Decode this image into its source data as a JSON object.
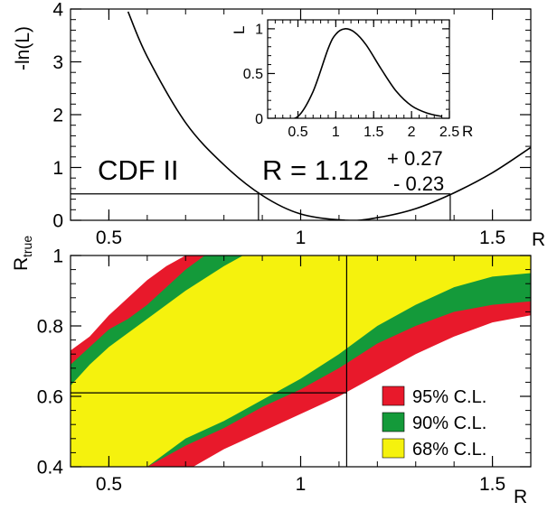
{
  "chart_data": [
    {
      "id": "neg_log_likelihood",
      "type": "line",
      "title": "",
      "xlabel": "R",
      "ylabel": "-ln(L)",
      "xlim": [
        0.4,
        1.6
      ],
      "ylim": [
        0,
        4
      ],
      "x_ticks": [
        "0.5",
        "1",
        "1.5"
      ],
      "y_ticks": [
        "0",
        "1",
        "2",
        "3",
        "4"
      ],
      "series": [
        {
          "x": [
            0.55,
            0.6,
            0.7,
            0.8,
            0.9,
            1.0,
            1.12,
            1.2,
            1.3,
            1.4,
            1.5,
            1.6
          ],
          "y": [
            3.95,
            3.1,
            1.85,
            1.05,
            0.47,
            0.12,
            0.0,
            0.05,
            0.22,
            0.52,
            0.9,
            1.38
          ]
        }
      ],
      "reference_line_y": 0.5,
      "interval_markers_x": [
        0.89,
        1.39
      ],
      "label_experiment": "CDF II",
      "result_text": "R = 1.12",
      "result_plus": "+ 0.27",
      "result_minus": "- 0.23"
    },
    {
      "id": "likelihood_inset",
      "type": "line",
      "title": "",
      "xlabel": "R",
      "ylabel": "L",
      "xlim": [
        0.1,
        2.5
      ],
      "ylim": [
        0,
        1.1
      ],
      "x_ticks": [
        "0.5",
        "1",
        "1.5",
        "2",
        "2.5"
      ],
      "y_ticks": [
        "0",
        "0.5",
        "1"
      ],
      "series": [
        {
          "x": [
            0.3,
            0.5,
            0.7,
            0.9,
            1.0,
            1.12,
            1.25,
            1.4,
            1.6,
            1.8,
            2.0,
            2.2,
            2.4
          ],
          "y": [
            0.0,
            0.02,
            0.3,
            0.78,
            0.94,
            1.0,
            0.96,
            0.82,
            0.55,
            0.3,
            0.14,
            0.06,
            0.02
          ]
        }
      ]
    },
    {
      "id": "confidence_belt",
      "type": "area",
      "title": "",
      "xlabel": "R",
      "ylabel": "R_true",
      "ylabel_main": "R",
      "ylabel_sub": "true",
      "xlim": [
        0.4,
        1.6
      ],
      "ylim": [
        0.4,
        1.0
      ],
      "x_ticks": [
        "0.5",
        "1",
        "1.5"
      ],
      "y_ticks": [
        "0.4",
        "0.6",
        "0.8",
        "1"
      ],
      "measured_R": 1.12,
      "interval_lower_Rtrue": 0.61,
      "bands": [
        {
          "name": "95% C.L.",
          "color": "#e8192b",
          "upper_x": [
            0.4,
            0.45,
            0.5,
            0.55,
            0.6,
            0.65,
            0.7
          ],
          "upper_y": [
            0.73,
            0.77,
            0.83,
            0.88,
            0.93,
            0.97,
            1.0
          ],
          "lower_x": [
            0.72,
            0.8,
            0.9,
            1.0,
            1.1,
            1.2,
            1.3,
            1.4,
            1.5,
            1.6
          ],
          "lower_y": [
            0.4,
            0.45,
            0.5,
            0.55,
            0.6,
            0.66,
            0.72,
            0.77,
            0.81,
            0.83
          ]
        },
        {
          "name": "90% C.L.",
          "color": "#149a3a",
          "upper_x": [
            0.4,
            0.45,
            0.5,
            0.55,
            0.6,
            0.7,
            0.75
          ],
          "upper_y": [
            0.69,
            0.74,
            0.79,
            0.82,
            0.86,
            0.96,
            1.0
          ],
          "lower_x": [
            0.6,
            0.7,
            0.8,
            0.9,
            1.0,
            1.1,
            1.2,
            1.3,
            1.4,
            1.5,
            1.6
          ],
          "lower_y": [
            0.4,
            0.46,
            0.51,
            0.57,
            0.62,
            0.68,
            0.75,
            0.8,
            0.84,
            0.86,
            0.87
          ]
        },
        {
          "name": "68% C.L.",
          "color": "#f5f20d",
          "upper_x": [
            0.4,
            0.45,
            0.5,
            0.6,
            0.7,
            0.8,
            0.85
          ],
          "upper_y": [
            0.63,
            0.69,
            0.74,
            0.82,
            0.9,
            0.97,
            1.0
          ],
          "lower_x": [
            0.4,
            0.5,
            0.6,
            0.7,
            0.8,
            0.9,
            1.0,
            1.1,
            1.2,
            1.3,
            1.4,
            1.5,
            1.6
          ],
          "lower_y": [
            0.4,
            0.4,
            0.4,
            0.48,
            0.53,
            0.59,
            0.65,
            0.72,
            0.8,
            0.86,
            0.91,
            0.94,
            0.95
          ]
        }
      ],
      "legend_position": "bottom-right",
      "legend": [
        {
          "label": "95% C.L.",
          "color": "#e8192b"
        },
        {
          "label": "90% C.L.",
          "color": "#149a3a"
        },
        {
          "label": "68% C.L.",
          "color": "#f5f20d"
        }
      ]
    }
  ]
}
